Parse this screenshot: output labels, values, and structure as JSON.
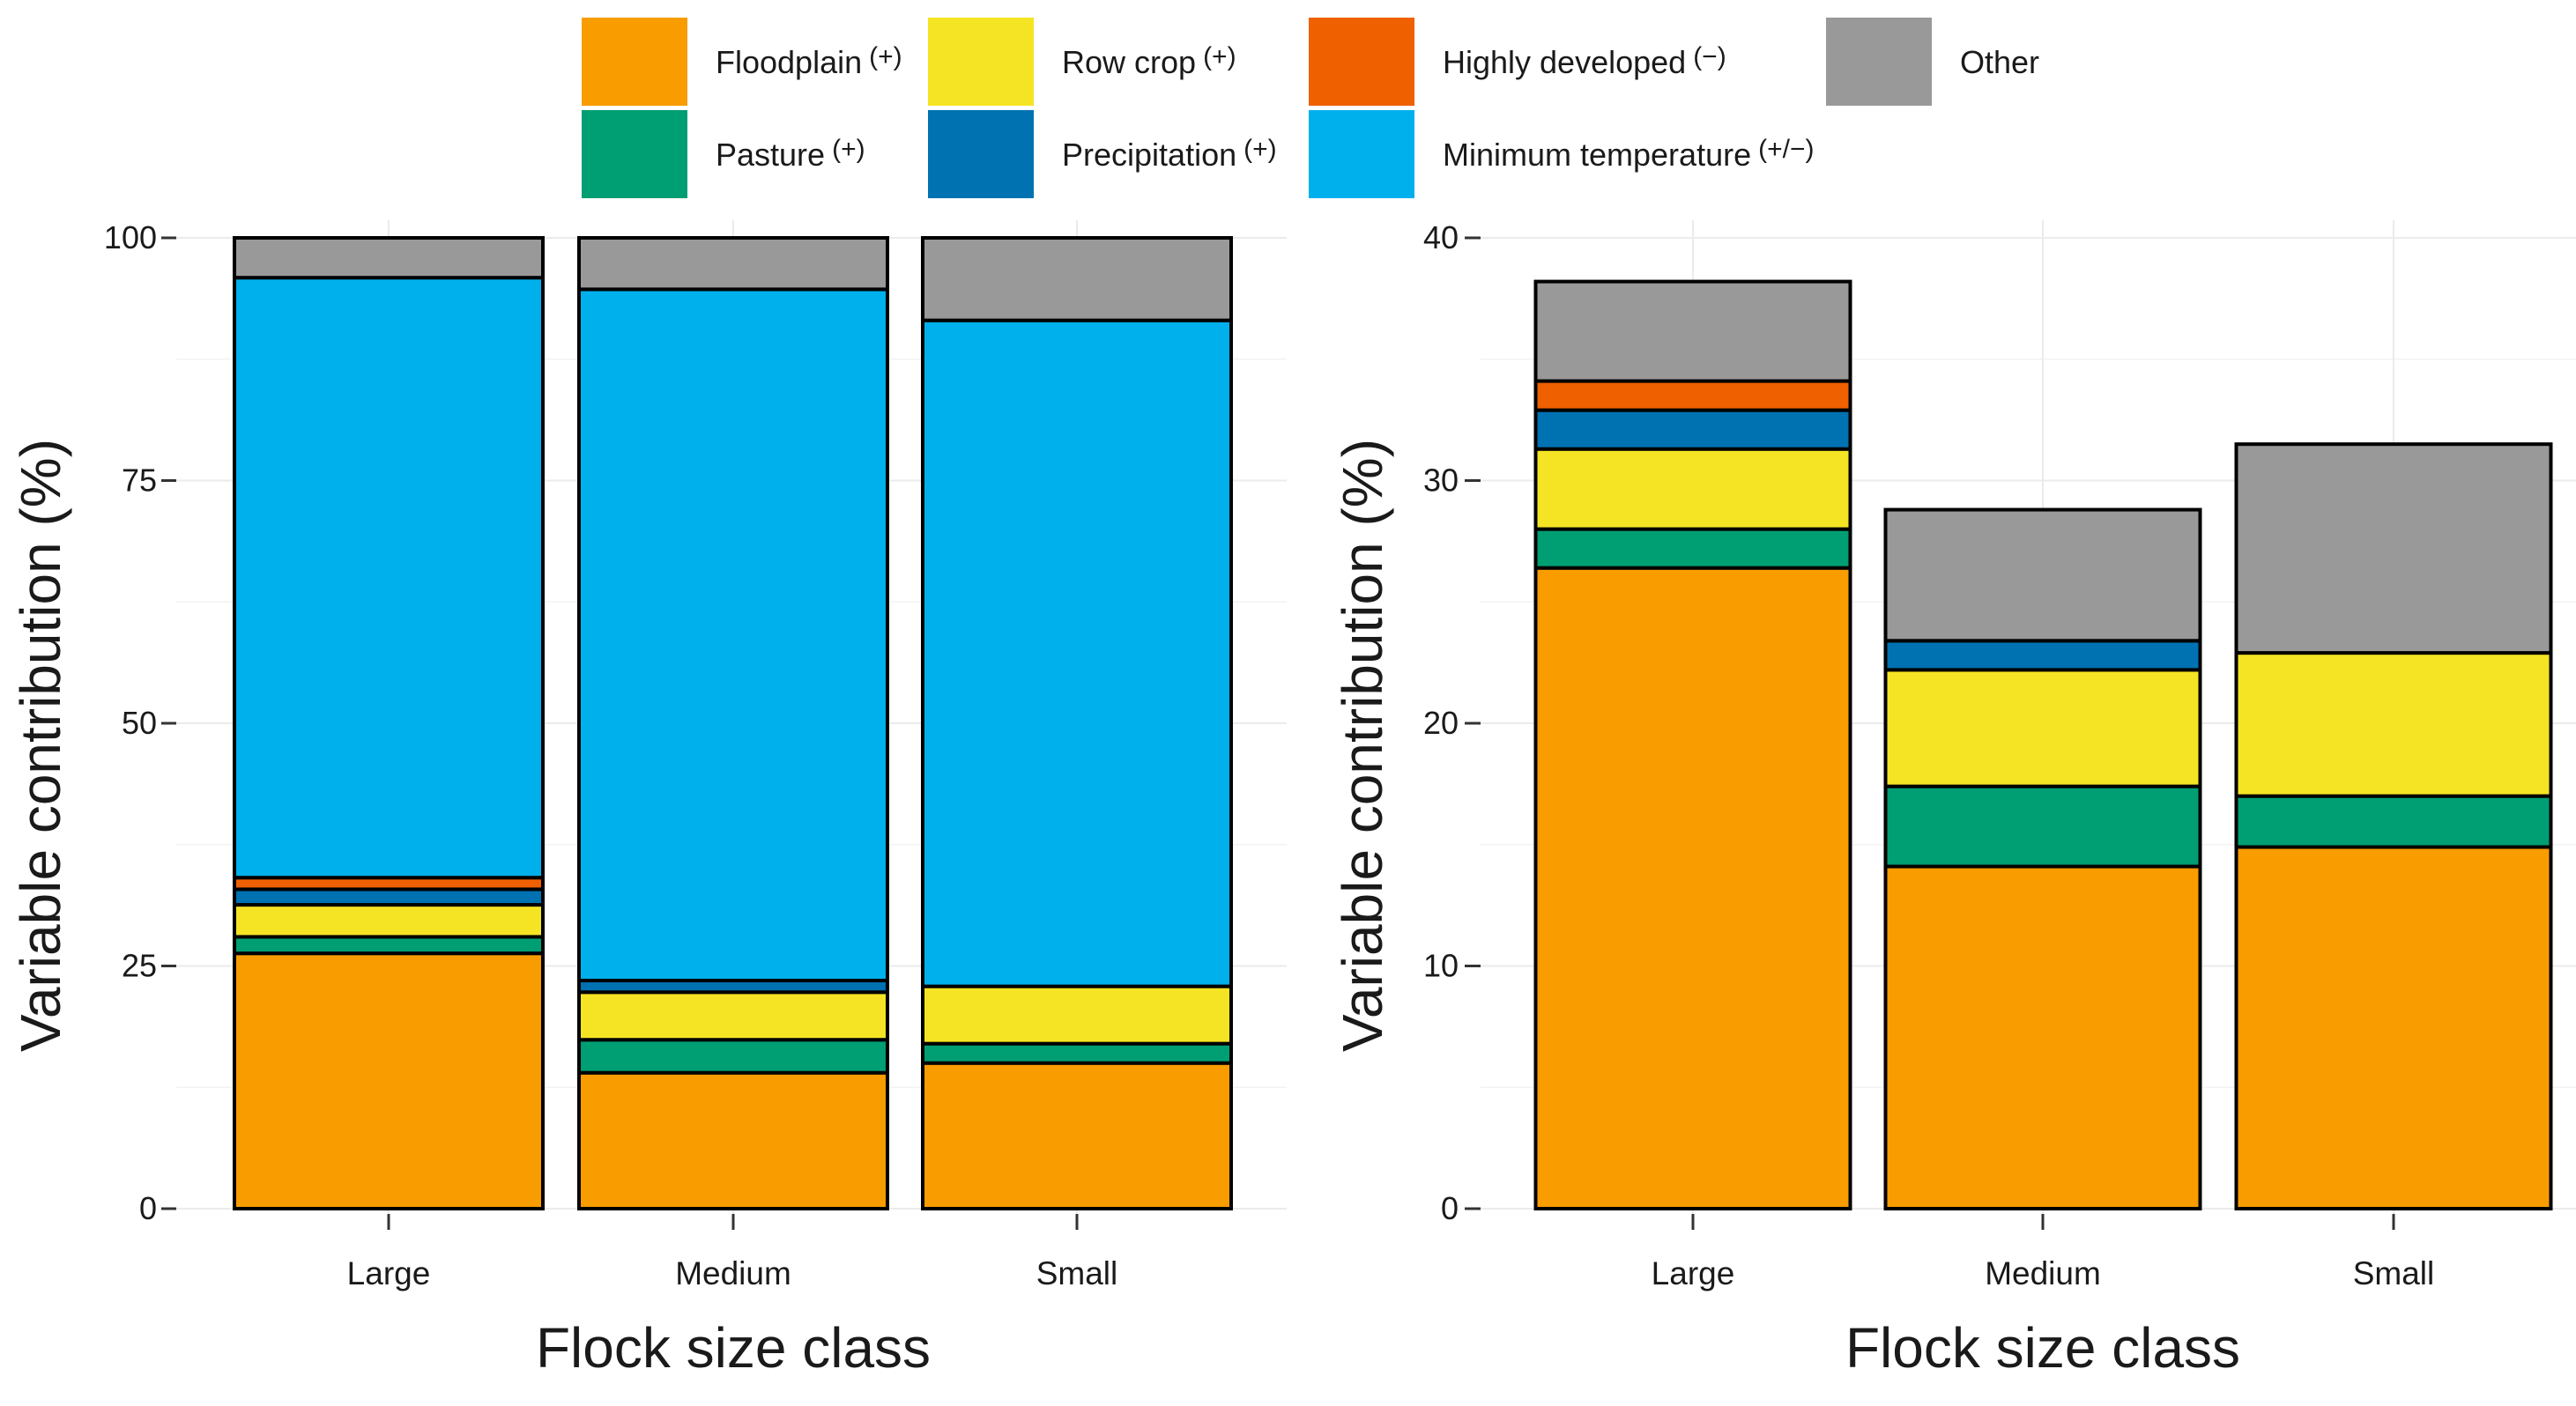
{
  "legend": {
    "items": [
      {
        "key": "floodplain",
        "label": "Floodplain",
        "sign": "(+)",
        "color": "#F89C00"
      },
      {
        "key": "row_crop",
        "label": "Row crop",
        "sign": "(+)",
        "color": "#F5E423"
      },
      {
        "key": "highly_developed",
        "label": "Highly developed",
        "sign": "(−)",
        "color": "#EF6000"
      },
      {
        "key": "other",
        "label": "Other",
        "sign": "",
        "color": "#999999"
      },
      {
        "key": "pasture",
        "label": "Pasture",
        "sign": "(+)",
        "color": "#009E73"
      },
      {
        "key": "precipitation",
        "label": "Precipitation",
        "sign": "(+)",
        "color": "#0072B2"
      },
      {
        "key": "min_temp",
        "label": "Minimum temperature",
        "sign": "(+/−)",
        "color": "#00B0EC"
      }
    ]
  },
  "chart_data": [
    {
      "type": "bar",
      "stacked": true,
      "panel": "left",
      "title": "",
      "xlabel": "Flock size class",
      "ylabel": "Variable contribution (%)",
      "ylim": [
        0,
        100
      ],
      "yticks": [
        0,
        25,
        50,
        75,
        100
      ],
      "categories": [
        "Large",
        "Medium",
        "Small"
      ],
      "series": [
        {
          "key": "floodplain",
          "name": "Floodplain",
          "values": [
            26.3,
            14.0,
            15.0
          ]
        },
        {
          "key": "pasture",
          "name": "Pasture",
          "values": [
            1.7,
            3.4,
            2.0
          ]
        },
        {
          "key": "row_crop",
          "name": "Row crop",
          "values": [
            3.3,
            4.9,
            5.9
          ]
        },
        {
          "key": "precipitation",
          "name": "Precipitation",
          "values": [
            1.6,
            1.2,
            0.0
          ]
        },
        {
          "key": "highly_developed",
          "name": "Highly developed",
          "values": [
            1.2,
            0.0,
            0.0
          ]
        },
        {
          "key": "min_temp",
          "name": "Minimum temperature",
          "values": [
            61.8,
            71.2,
            68.6
          ]
        },
        {
          "key": "other",
          "name": "Other",
          "values": [
            4.1,
            5.3,
            8.5
          ]
        }
      ]
    },
    {
      "type": "bar",
      "stacked": true,
      "panel": "right",
      "title": "",
      "xlabel": "Flock size class",
      "ylabel": "Variable contribution (%)",
      "ylim": [
        0,
        40
      ],
      "yticks": [
        0,
        10,
        20,
        30,
        40
      ],
      "categories": [
        "Large",
        "Medium",
        "Small"
      ],
      "series": [
        {
          "key": "floodplain",
          "name": "Floodplain",
          "values": [
            26.4,
            14.1,
            14.9
          ]
        },
        {
          "key": "pasture",
          "name": "Pasture",
          "values": [
            1.6,
            3.3,
            2.1
          ]
        },
        {
          "key": "row_crop",
          "name": "Row crop",
          "values": [
            3.3,
            4.8,
            5.9
          ]
        },
        {
          "key": "precipitation",
          "name": "Precipitation",
          "values": [
            1.6,
            1.2,
            0.0
          ]
        },
        {
          "key": "highly_developed",
          "name": "Highly developed",
          "values": [
            1.2,
            0.0,
            0.0
          ]
        },
        {
          "key": "other",
          "name": "Other",
          "values": [
            4.1,
            5.4,
            8.6
          ]
        }
      ]
    }
  ]
}
